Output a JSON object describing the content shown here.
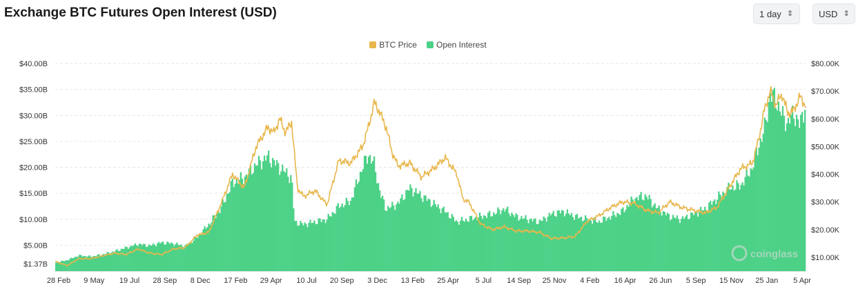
{
  "header": {
    "title": "Exchange BTC Futures Open Interest (USD)",
    "interval_value": "1 day",
    "currency_value": "USD",
    "select_icon": "chevron-up-down-icon"
  },
  "watermark": {
    "text": "coinglass",
    "icon": "coinglass-logo-icon"
  },
  "colors": {
    "price": "#e8b64a",
    "oi": "#4cd187",
    "grid": "#e6e6e6"
  },
  "chart_data": {
    "type": "bar+line",
    "legend": [
      "BTC Price",
      "Open Interest"
    ],
    "legend_position": "top-center",
    "grid": true,
    "x_ticks": [
      "28 Feb",
      "9 May",
      "19 Jul",
      "28 Sep",
      "8 Dec",
      "17 Feb",
      "29 Apr",
      "10 Jul",
      "20 Sep",
      "3 Dec",
      "13 Feb",
      "25 Apr",
      "5 Jul",
      "14 Sep",
      "25 Nov",
      "4 Feb",
      "16 Apr",
      "26 Jun",
      "5 Sep",
      "15 Nov",
      "25 Jan",
      "5 Apr"
    ],
    "y_left_ticks": [
      "$1.37B",
      "$5.00B",
      "$10.00B",
      "$15.00B",
      "$20.00B",
      "$25.00B",
      "$30.00B",
      "$35.00B",
      "$40.00B"
    ],
    "y_left_values": [
      1.37,
      5,
      10,
      15,
      20,
      25,
      30,
      35,
      40
    ],
    "y_right_ticks": [
      "$10.00K",
      "$20.00K",
      "$30.00K",
      "$40.00K",
      "$50.00K",
      "$60.00K",
      "$70.00K",
      "$80.00K"
    ],
    "y_right_values": [
      10,
      20,
      30,
      40,
      50,
      60,
      70,
      80
    ],
    "ylim_left_billion_usd": [
      0,
      40
    ],
    "ylim_right_thousand_usd": [
      5,
      80
    ],
    "series": [
      {
        "name": "Open Interest",
        "axis": "left",
        "unit": "billion USD",
        "points": [
          [
            0,
            1.6
          ],
          [
            2,
            2.1
          ],
          [
            4,
            3.0
          ],
          [
            6,
            2.8
          ],
          [
            8,
            3.2
          ],
          [
            10,
            3.8
          ],
          [
            12,
            4.5
          ],
          [
            14,
            5.2
          ],
          [
            16,
            4.9
          ],
          [
            18,
            5.5
          ],
          [
            20,
            5.3
          ],
          [
            22,
            4.8
          ],
          [
            24,
            6.5
          ],
          [
            26,
            9.0
          ],
          [
            28,
            12.0
          ],
          [
            30,
            17.0
          ],
          [
            32,
            18.0
          ],
          [
            34,
            20.5
          ],
          [
            36,
            22.0
          ],
          [
            38,
            20.0
          ],
          [
            40,
            18.0
          ],
          [
            40.5,
            9.5
          ],
          [
            42,
            9.0
          ],
          [
            44,
            9.5
          ],
          [
            46,
            10.0
          ],
          [
            48,
            12.5
          ],
          [
            50,
            13.5
          ],
          [
            52,
            20.0
          ],
          [
            53,
            22.5
          ],
          [
            54,
            20.5
          ],
          [
            55,
            15.0
          ],
          [
            56,
            12.0
          ],
          [
            58,
            13.0
          ],
          [
            60,
            16.0
          ],
          [
            62,
            14.5
          ],
          [
            64,
            13.0
          ],
          [
            66,
            11.5
          ],
          [
            68,
            9.5
          ],
          [
            70,
            10.0
          ],
          [
            72,
            10.5
          ],
          [
            74,
            11.0
          ],
          [
            76,
            12.0
          ],
          [
            78,
            10.5
          ],
          [
            80,
            10.0
          ],
          [
            82,
            9.5
          ],
          [
            84,
            11.0
          ],
          [
            86,
            11.5
          ],
          [
            88,
            10.5
          ],
          [
            90,
            10.0
          ],
          [
            92,
            9.5
          ],
          [
            94,
            10.5
          ],
          [
            96,
            11.5
          ],
          [
            98,
            14.0
          ],
          [
            100,
            14.5
          ],
          [
            102,
            12.0
          ],
          [
            104,
            10.5
          ],
          [
            106,
            10.0
          ],
          [
            108,
            11.0
          ],
          [
            110,
            12.0
          ],
          [
            112,
            14.0
          ],
          [
            114,
            16.0
          ],
          [
            116,
            16.5
          ],
          [
            118,
            20.0
          ],
          [
            119,
            24.0
          ],
          [
            120,
            27.0
          ],
          [
            121,
            34.0
          ],
          [
            122,
            33.0
          ],
          [
            123,
            30.0
          ],
          [
            124,
            28.5
          ],
          [
            125,
            30.5
          ],
          [
            126,
            28.0
          ],
          [
            127,
            32.5
          ]
        ]
      },
      {
        "name": "BTC Price",
        "axis": "right",
        "unit": "thousand USD",
        "points": [
          [
            0,
            8.5
          ],
          [
            2,
            7.0
          ],
          [
            4,
            9.5
          ],
          [
            6,
            9.5
          ],
          [
            8,
            10.5
          ],
          [
            10,
            11.5
          ],
          [
            12,
            11.0
          ],
          [
            14,
            13.0
          ],
          [
            16,
            11.5
          ],
          [
            18,
            11.0
          ],
          [
            20,
            13.0
          ],
          [
            22,
            13.5
          ],
          [
            24,
            18.0
          ],
          [
            26,
            19.0
          ],
          [
            28,
            29.0
          ],
          [
            30,
            40.0
          ],
          [
            32,
            35.0
          ],
          [
            34,
            50.0
          ],
          [
            36,
            57.0
          ],
          [
            37,
            55.0
          ],
          [
            38,
            60.0
          ],
          [
            39,
            55.0
          ],
          [
            40,
            59.0
          ],
          [
            41,
            35.0
          ],
          [
            42,
            32.0
          ],
          [
            44,
            34.0
          ],
          [
            46,
            29.0
          ],
          [
            48,
            45.0
          ],
          [
            50,
            44.0
          ],
          [
            52,
            50.0
          ],
          [
            53,
            57.0
          ],
          [
            54,
            66.0
          ],
          [
            55,
            62.0
          ],
          [
            56,
            57.0
          ],
          [
            57,
            48.0
          ],
          [
            58,
            43.0
          ],
          [
            60,
            44.0
          ],
          [
            62,
            39.0
          ],
          [
            64,
            42.0
          ],
          [
            66,
            46.0
          ],
          [
            67,
            43.0
          ],
          [
            68,
            40.0
          ],
          [
            69,
            31.0
          ],
          [
            70,
            30.0
          ],
          [
            72,
            22.0
          ],
          [
            74,
            20.0
          ],
          [
            76,
            21.0
          ],
          [
            78,
            19.5
          ],
          [
            80,
            19.5
          ],
          [
            82,
            19.0
          ],
          [
            84,
            16.8
          ],
          [
            86,
            17.0
          ],
          [
            88,
            17.5
          ],
          [
            90,
            23.0
          ],
          [
            92,
            25.0
          ],
          [
            94,
            28.0
          ],
          [
            96,
            30.0
          ],
          [
            98,
            29.5
          ],
          [
            100,
            27.0
          ],
          [
            102,
            26.0
          ],
          [
            104,
            30.0
          ],
          [
            106,
            28.0
          ],
          [
            108,
            27.0
          ],
          [
            110,
            26.0
          ],
          [
            112,
            28.0
          ],
          [
            114,
            35.0
          ],
          [
            116,
            42.0
          ],
          [
            117,
            43.0
          ],
          [
            118,
            44.0
          ],
          [
            119,
            52.0
          ],
          [
            120,
            63.0
          ],
          [
            121,
            70.0
          ],
          [
            122,
            65.0
          ],
          [
            123,
            69.0
          ],
          [
            124,
            62.0
          ],
          [
            125,
            63.0
          ],
          [
            126,
            68.0
          ],
          [
            127,
            65.0
          ]
        ]
      }
    ]
  }
}
